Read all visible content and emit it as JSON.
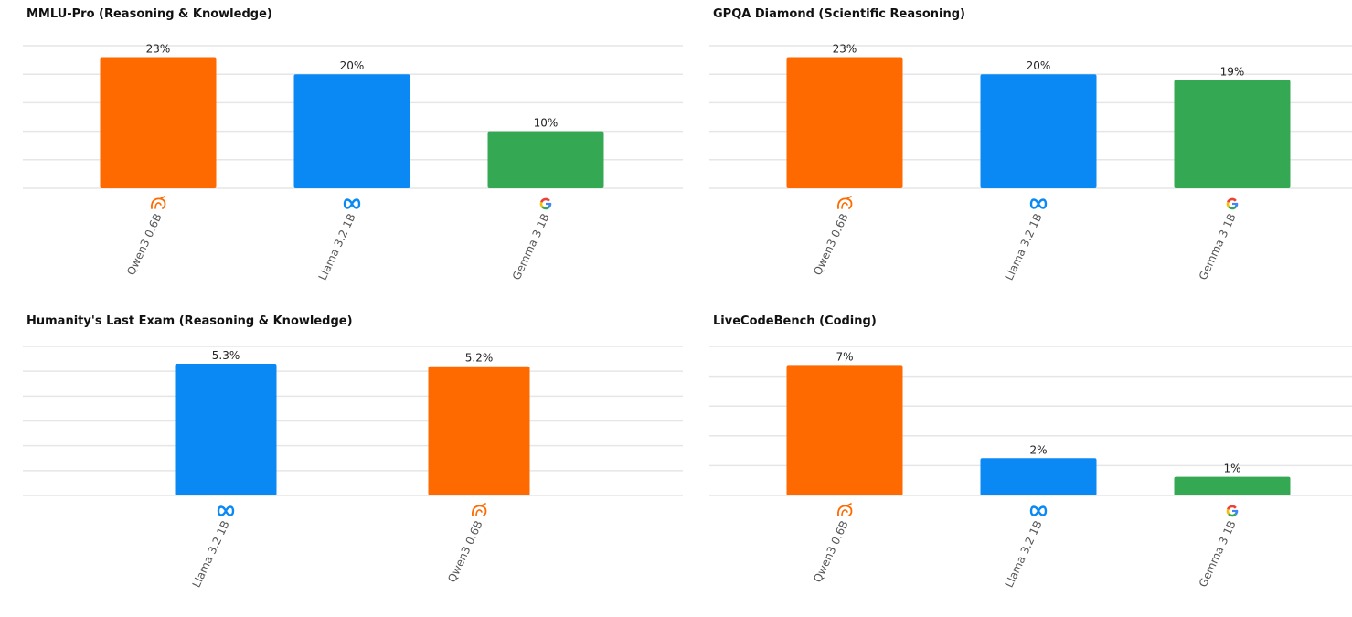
{
  "colors": {
    "qwen": "#FF6A00",
    "llama": "#0A89F5",
    "gemma": "#34A853",
    "grid": "#E6E6E6"
  },
  "chart_data": [
    {
      "type": "bar",
      "title": "MMLU-Pro (Reasoning & Knowledge)",
      "categories": [
        "Qwen3 0.6B",
        "Llama 3.2 1B",
        "Gemma 3 1B"
      ],
      "values": [
        23,
        20,
        10
      ],
      "value_labels": [
        "23%",
        "20%",
        "10%"
      ],
      "icons": [
        "qwen-logo-icon",
        "meta-logo-icon",
        "google-logo-icon"
      ],
      "bar_colors": [
        "#FF6A00",
        "#0A89F5",
        "#34A853"
      ],
      "ylim": [
        0,
        25
      ],
      "grid": true
    },
    {
      "type": "bar",
      "title": "GPQA Diamond (Scientific Reasoning)",
      "categories": [
        "Qwen3 0.6B",
        "Llama 3.2 1B",
        "Gemma 3 1B"
      ],
      "values": [
        23,
        20,
        19
      ],
      "value_labels": [
        "23%",
        "20%",
        "19%"
      ],
      "icons": [
        "qwen-logo-icon",
        "meta-logo-icon",
        "google-logo-icon"
      ],
      "bar_colors": [
        "#FF6A00",
        "#0A89F5",
        "#34A853"
      ],
      "ylim": [
        0,
        25
      ],
      "grid": true
    },
    {
      "type": "bar",
      "title": "Humanity's Last Exam (Reasoning & Knowledge)",
      "categories": [
        "Llama 3.2 1B",
        "Qwen3 0.6B"
      ],
      "values": [
        5.3,
        5.2
      ],
      "value_labels": [
        "5.3%",
        "5.2%"
      ],
      "icons": [
        "meta-logo-icon",
        "qwen-logo-icon"
      ],
      "bar_colors": [
        "#0A89F5",
        "#FF6A00"
      ],
      "ylim": [
        0,
        6
      ],
      "grid": true
    },
    {
      "type": "bar",
      "title": "LiveCodeBench (Coding)",
      "categories": [
        "Qwen3 0.6B",
        "Llama 3.2 1B",
        "Gemma 3 1B"
      ],
      "values": [
        7,
        2,
        1
      ],
      "value_labels": [
        "7%",
        "2%",
        "1%"
      ],
      "icons": [
        "qwen-logo-icon",
        "meta-logo-icon",
        "google-logo-icon"
      ],
      "bar_colors": [
        "#FF6A00",
        "#0A89F5",
        "#34A853"
      ],
      "ylim": [
        0,
        8
      ],
      "grid": true
    }
  ]
}
